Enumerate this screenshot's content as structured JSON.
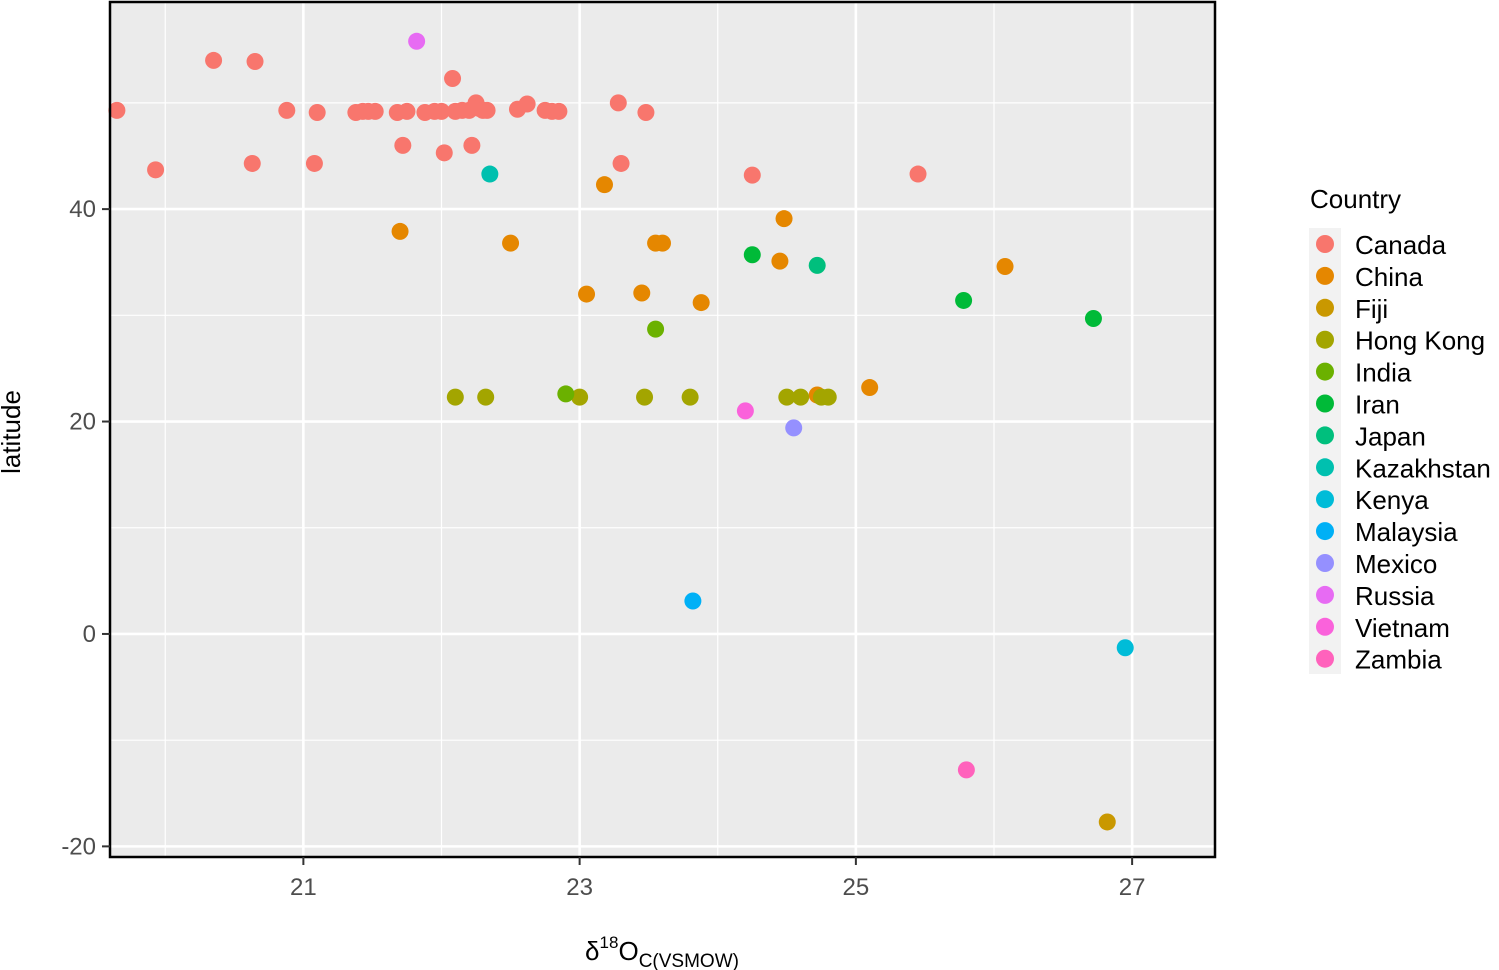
{
  "chart_data": {
    "type": "scatter",
    "xlabel": {
      "prefix": "δ",
      "sup": "18",
      "main": "O",
      "sub": "C(VSMOW)"
    },
    "ylabel": "latitude",
    "xlim": [
      19.6,
      27.6
    ],
    "ylim": [
      -21,
      59.5
    ],
    "x_ticks": [
      21,
      23,
      25,
      27
    ],
    "y_ticks": [
      -20,
      0,
      20,
      40
    ],
    "x_tick_labels": [
      "21",
      "23",
      "25",
      "27"
    ],
    "y_tick_labels": [
      "-20",
      "0",
      "20",
      "40"
    ],
    "grid": true,
    "legend": {
      "title": "Country",
      "position": "right"
    },
    "series": [
      {
        "name": "Canada",
        "color": "#F8766D",
        "points": [
          [
            19.65,
            49.3
          ],
          [
            19.93,
            43.7
          ],
          [
            20.35,
            54.0
          ],
          [
            20.63,
            44.3
          ],
          [
            20.65,
            53.9
          ],
          [
            20.88,
            49.3
          ],
          [
            21.08,
            44.3
          ],
          [
            21.1,
            49.1
          ],
          [
            21.38,
            49.1
          ],
          [
            21.43,
            49.2
          ],
          [
            21.47,
            49.2
          ],
          [
            21.52,
            49.2
          ],
          [
            21.68,
            49.1
          ],
          [
            21.72,
            46.0
          ],
          [
            21.75,
            49.2
          ],
          [
            21.88,
            49.1
          ],
          [
            21.95,
            49.2
          ],
          [
            22.0,
            49.2
          ],
          [
            22.02,
            45.3
          ],
          [
            22.08,
            52.3
          ],
          [
            22.1,
            49.2
          ],
          [
            22.15,
            49.3
          ],
          [
            22.2,
            49.3
          ],
          [
            22.22,
            46.0
          ],
          [
            22.25,
            50.0
          ],
          [
            22.27,
            49.5
          ],
          [
            22.3,
            49.3
          ],
          [
            22.33,
            49.3
          ],
          [
            22.55,
            49.4
          ],
          [
            22.62,
            49.9
          ],
          [
            22.75,
            49.3
          ],
          [
            22.8,
            49.2
          ],
          [
            22.85,
            49.2
          ],
          [
            23.28,
            50.0
          ],
          [
            23.3,
            44.3
          ],
          [
            23.48,
            49.1
          ],
          [
            24.25,
            43.2
          ],
          [
            25.45,
            43.3
          ]
        ]
      },
      {
        "name": "China",
        "color": "#E58700",
        "points": [
          [
            21.7,
            37.9
          ],
          [
            22.5,
            36.8
          ],
          [
            23.05,
            32.0
          ],
          [
            23.18,
            42.3
          ],
          [
            23.45,
            32.1
          ],
          [
            23.55,
            36.8
          ],
          [
            23.6,
            36.8
          ],
          [
            23.88,
            31.2
          ],
          [
            24.45,
            35.1
          ],
          [
            24.48,
            39.1
          ],
          [
            24.72,
            22.5
          ],
          [
            25.1,
            23.2
          ],
          [
            26.08,
            34.6
          ]
        ]
      },
      {
        "name": "Fiji",
        "color": "#C99800",
        "points": [
          [
            26.82,
            -17.7
          ]
        ]
      },
      {
        "name": "Hong Kong",
        "color": "#A3A500",
        "points": [
          [
            22.1,
            22.3
          ],
          [
            22.32,
            22.3
          ],
          [
            23.0,
            22.3
          ],
          [
            23.47,
            22.3
          ],
          [
            23.8,
            22.3
          ],
          [
            24.5,
            22.3
          ],
          [
            24.6,
            22.3
          ],
          [
            24.75,
            22.3
          ],
          [
            24.8,
            22.3
          ]
        ]
      },
      {
        "name": "India",
        "color": "#6BB100",
        "points": [
          [
            22.9,
            22.6
          ],
          [
            23.55,
            28.7
          ]
        ]
      },
      {
        "name": "Iran",
        "color": "#00BA38",
        "points": [
          [
            24.25,
            35.7
          ],
          [
            25.78,
            31.4
          ],
          [
            26.72,
            29.7
          ]
        ]
      },
      {
        "name": "Japan",
        "color": "#00BF7D",
        "points": [
          [
            24.72,
            34.7
          ]
        ]
      },
      {
        "name": "Kazakhstan",
        "color": "#00C0AF",
        "points": [
          [
            22.35,
            43.3
          ]
        ]
      },
      {
        "name": "Kenya",
        "color": "#00BCD8",
        "points": [
          [
            26.95,
            -1.3
          ]
        ]
      },
      {
        "name": "Malaysia",
        "color": "#00B0F6",
        "points": [
          [
            23.82,
            3.1
          ]
        ]
      },
      {
        "name": "Mexico",
        "color": "#9590FF",
        "points": [
          [
            24.55,
            19.4
          ]
        ]
      },
      {
        "name": "Russia",
        "color": "#E76BF3",
        "points": [
          [
            21.82,
            55.8
          ]
        ]
      },
      {
        "name": "Vietnam",
        "color": "#FA62DB",
        "points": [
          [
            24.2,
            21.0
          ]
        ]
      },
      {
        "name": "Zambia",
        "color": "#FF62BC",
        "points": [
          [
            25.8,
            -12.8
          ]
        ]
      }
    ]
  }
}
